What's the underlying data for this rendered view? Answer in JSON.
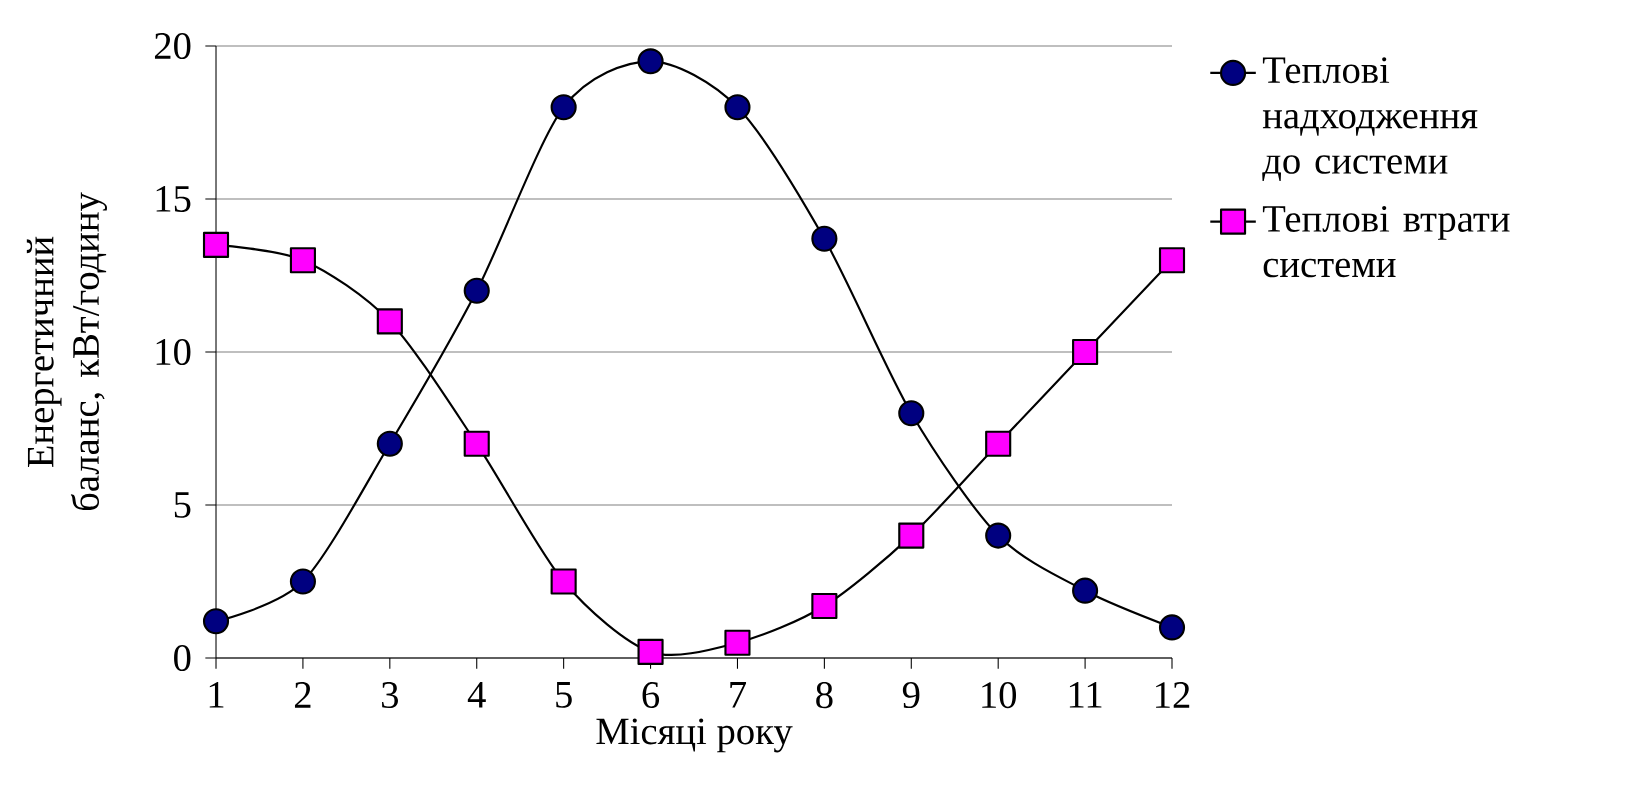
{
  "chart_data": {
    "type": "line",
    "xlabel": "Місяці року",
    "ylabel": "Енергетичний баланс, кВт/годину",
    "x": [
      1,
      2,
      3,
      4,
      5,
      6,
      7,
      8,
      9,
      10,
      11,
      12
    ],
    "series": [
      {
        "name": "Теплові надходження до системи",
        "color": "#000080",
        "marker": "circle",
        "values": [
          1.2,
          2.5,
          7.0,
          12.0,
          18.0,
          19.5,
          18.0,
          13.7,
          8.0,
          4.0,
          2.2,
          1.0
        ]
      },
      {
        "name": "Теплові втрати системи",
        "color": "#ff00ff",
        "marker": "square",
        "values": [
          13.5,
          13.0,
          11.0,
          7.0,
          2.5,
          0.2,
          0.5,
          1.7,
          4.0,
          7.0,
          10.0,
          13.0
        ]
      }
    ],
    "xlim": [
      1,
      12
    ],
    "xticks": [
      1,
      2,
      3,
      4,
      5,
      6,
      7,
      8,
      9,
      10,
      11,
      12
    ],
    "ylim": [
      0,
      20
    ],
    "yticks": [
      0,
      5,
      10,
      15,
      20
    ],
    "grid": "y",
    "legend": "right"
  }
}
